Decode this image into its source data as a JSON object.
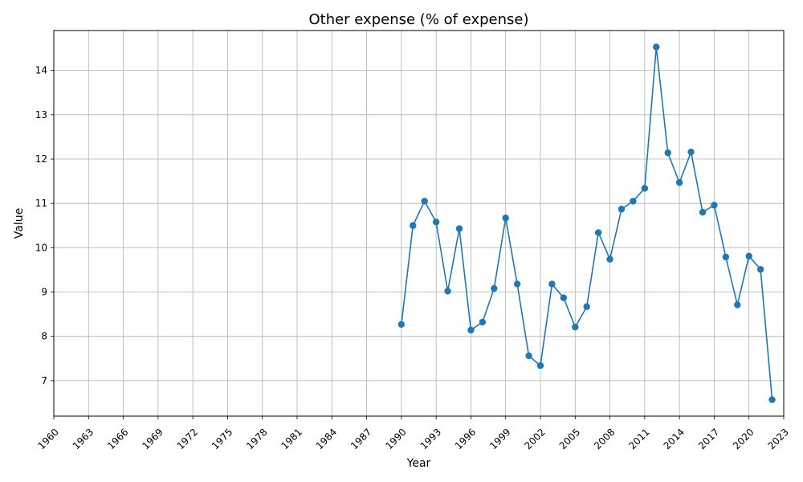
{
  "chart_data": {
    "type": "line",
    "title": "Other expense (% of expense)",
    "xlabel": "Year",
    "ylabel": "Value",
    "xlim": [
      1960,
      2023
    ],
    "ylim": [
      6.2,
      14.9
    ],
    "grid": true,
    "x_ticks": [
      1960,
      1963,
      1966,
      1969,
      1972,
      1975,
      1978,
      1981,
      1984,
      1987,
      1990,
      1993,
      1996,
      1999,
      2002,
      2005,
      2008,
      2011,
      2014,
      2017,
      2020,
      2023
    ],
    "y_ticks": [
      7,
      8,
      9,
      10,
      11,
      12,
      13,
      14
    ],
    "series_color": "#1f77b4",
    "x": [
      1990,
      1991,
      1992,
      1993,
      1994,
      1995,
      1996,
      1997,
      1998,
      1999,
      2000,
      2001,
      2002,
      2003,
      2004,
      2005,
      2006,
      2007,
      2008,
      2009,
      2010,
      2011,
      2012,
      2013,
      2014,
      2015,
      2016,
      2017,
      2018,
      2019,
      2020,
      2021,
      2022
    ],
    "values": [
      8.27,
      10.5,
      11.05,
      10.58,
      9.02,
      10.43,
      8.14,
      8.32,
      9.08,
      10.67,
      9.18,
      7.56,
      7.34,
      9.18,
      8.87,
      8.21,
      8.67,
      10.34,
      9.74,
      10.87,
      11.05,
      11.34,
      14.53,
      12.14,
      11.47,
      12.16,
      10.8,
      10.96,
      9.79,
      8.71,
      9.81,
      9.51,
      6.57
    ]
  }
}
